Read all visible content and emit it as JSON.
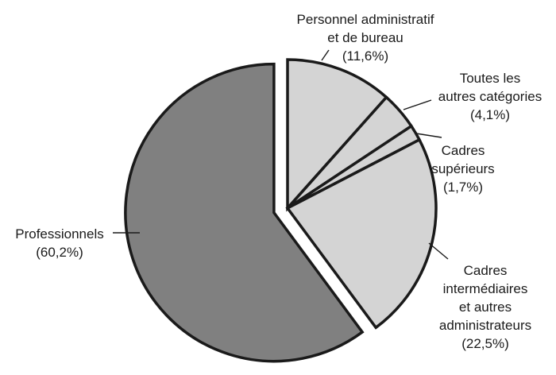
{
  "chart_data": {
    "type": "pie",
    "title": "",
    "slices": [
      {
        "name": "Personnel administratif et de bureau",
        "value": 11.6,
        "label_lines": [
          "Personnel administratif",
          "et de bureau",
          "(11,6%)"
        ],
        "color": "#d4d4d4"
      },
      {
        "name": "Toutes les autres catégories",
        "value": 4.1,
        "label_lines": [
          "Toutes les",
          "autres catégories",
          "(4,1%)"
        ],
        "color": "#d4d4d4"
      },
      {
        "name": "Cadres supérieurs",
        "value": 1.7,
        "label_lines": [
          "Cadres",
          "supérieurs",
          "(1,7%)"
        ],
        "color": "#d4d4d4"
      },
      {
        "name": "Cadres intermédiaires et autres administrateurs",
        "value": 22.5,
        "label_lines": [
          "Cadres",
          "intermédiaires",
          "et autres",
          "administrateurs",
          "(22,5%)"
        ],
        "color": "#d4d4d4"
      },
      {
        "name": "Professionnels",
        "value": 60.2,
        "label_lines": [
          "Professionnels",
          "(60,2%)"
        ],
        "color": "#808080",
        "exploded": true
      }
    ]
  }
}
